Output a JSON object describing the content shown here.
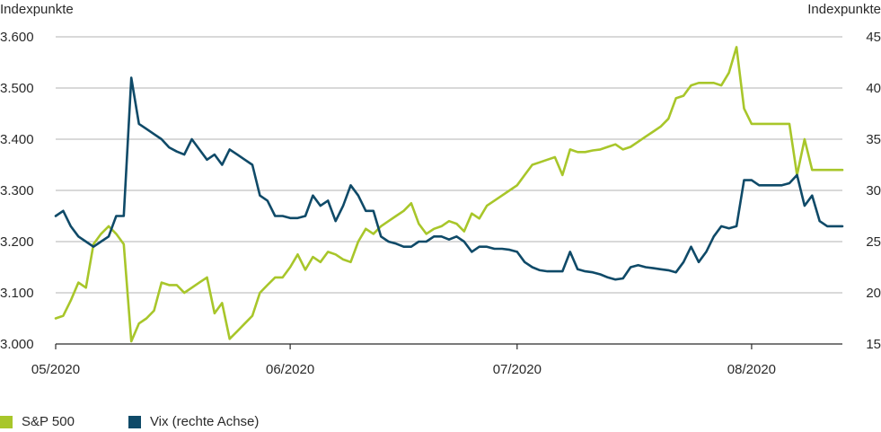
{
  "chart_data": {
    "type": "line",
    "y_left_label": "Indexpunkte",
    "y_right_label": "Indexpunkte",
    "y_left_ticks": [
      "3.000",
      "3.100",
      "3.200",
      "3.300",
      "3.400",
      "3.500",
      "3.600"
    ],
    "y_right_ticks": [
      "15",
      "20",
      "25",
      "30",
      "35",
      "40",
      "45"
    ],
    "ylim_left": [
      3000,
      3600
    ],
    "ylim_right": [
      15,
      45
    ],
    "x_ticks": [
      "05/2020",
      "06/2020",
      "07/2020",
      "08/2020"
    ],
    "x_tick_days": [
      0,
      31,
      61,
      92
    ],
    "xlim_days": [
      0,
      104
    ],
    "grid": "horizontal",
    "legend_position": "bottom-left",
    "series": [
      {
        "name": "S&P 500",
        "axis": "left",
        "color": "#a8c62a",
        "x_days": [
          0,
          1,
          2,
          3,
          4,
          5,
          6,
          7,
          8,
          9,
          10,
          11,
          12,
          13,
          14,
          15,
          16,
          17,
          18,
          19,
          20,
          21,
          22,
          23,
          24,
          25,
          26,
          27,
          28,
          29,
          30,
          31,
          32,
          33,
          34,
          35,
          36,
          37,
          38,
          39,
          40,
          41,
          42,
          43,
          44,
          45,
          46,
          47,
          48,
          49,
          50,
          51,
          52,
          53,
          54,
          55,
          56,
          57,
          58,
          59,
          60,
          61,
          62,
          63,
          64,
          65,
          66,
          67,
          68,
          69,
          70,
          71,
          72,
          73,
          74,
          75,
          76,
          77,
          78,
          79,
          80,
          81,
          82,
          83,
          84,
          85,
          86,
          87,
          88,
          89,
          90,
          91,
          92,
          93,
          94,
          95,
          96,
          97,
          98,
          99,
          100,
          101,
          102,
          103,
          104
        ],
        "values": [
          3050,
          3055,
          3085,
          3120,
          3110,
          3195,
          3215,
          3230,
          3215,
          3195,
          3005,
          3040,
          3050,
          3065,
          3120,
          3115,
          3115,
          3100,
          3110,
          3120,
          3130,
          3060,
          3080,
          3010,
          3025,
          3040,
          3055,
          3100,
          3115,
          3130,
          3130,
          3150,
          3175,
          3145,
          3170,
          3160,
          3180,
          3175,
          3165,
          3160,
          3200,
          3225,
          3215,
          3230,
          3240,
          3250,
          3260,
          3275,
          3235,
          3215,
          3225,
          3230,
          3240,
          3235,
          3220,
          3255,
          3245,
          3270,
          3280,
          3290,
          3300,
          3310,
          3330,
          3350,
          3355,
          3360,
          3365,
          3330,
          3380,
          3375,
          3375,
          3378,
          3380,
          3385,
          3390,
          3380,
          3385,
          3395,
          3405,
          3415,
          3425,
          3440,
          3480,
          3485,
          3505,
          3510,
          3510,
          3510,
          3505,
          3530,
          3580,
          3460,
          3430,
          3430,
          3430,
          3430,
          3430,
          3430,
          3330,
          3400,
          3340,
          3340,
          3340,
          3340,
          3340
        ],
        "note_points_plotted": "x_days/values sampled daily"
      },
      {
        "name": "Vix (rechte Achse)",
        "axis": "right",
        "color": "#0f4a68",
        "x_days": [
          0,
          1,
          2,
          3,
          4,
          5,
          6,
          7,
          8,
          9,
          10,
          11,
          12,
          13,
          14,
          15,
          16,
          17,
          18,
          19,
          20,
          21,
          22,
          23,
          24,
          25,
          26,
          27,
          28,
          29,
          30,
          31,
          32,
          33,
          34,
          35,
          36,
          37,
          38,
          39,
          40,
          41,
          42,
          43,
          44,
          45,
          46,
          47,
          48,
          49,
          50,
          51,
          52,
          53,
          54,
          55,
          56,
          57,
          58,
          59,
          60,
          61,
          62,
          63,
          64,
          65,
          66,
          67,
          68,
          69,
          70,
          71,
          72,
          73,
          74,
          75,
          76,
          77,
          78,
          79,
          80,
          81,
          82,
          83,
          84,
          85,
          86,
          87,
          88,
          89,
          90,
          91,
          92,
          93,
          94,
          95,
          96,
          97,
          98,
          99,
          100,
          101,
          102,
          103,
          104
        ],
        "values": [
          27.5,
          28.0,
          26.5,
          25.5,
          25.0,
          24.5,
          25.0,
          25.5,
          27.5,
          27.5,
          41.0,
          36.5,
          36.0,
          35.5,
          35.0,
          34.2,
          33.8,
          33.5,
          35.0,
          34.0,
          33.0,
          33.5,
          32.5,
          34.0,
          33.5,
          33.0,
          32.5,
          29.5,
          29.0,
          27.5,
          27.5,
          27.3,
          27.3,
          27.5,
          29.5,
          28.5,
          29.0,
          27.0,
          28.5,
          30.5,
          29.5,
          28.0,
          28.0,
          25.5,
          25.0,
          24.8,
          24.5,
          24.5,
          25.0,
          25.0,
          25.5,
          25.5,
          25.2,
          25.5,
          25.0,
          24.0,
          24.5,
          24.5,
          24.3,
          24.3,
          24.2,
          24.0,
          23.0,
          22.5,
          22.2,
          22.1,
          22.1,
          22.1,
          24.0,
          22.3,
          22.1,
          22.0,
          21.8,
          21.5,
          21.3,
          21.4,
          22.5,
          22.7,
          22.5,
          22.4,
          22.3,
          22.2,
          22.0,
          23.0,
          24.5,
          23.0,
          24.0,
          25.5,
          26.5,
          26.3,
          26.5,
          31.0,
          31.0,
          30.5,
          30.5,
          30.5,
          30.5,
          30.7,
          31.5,
          28.5,
          29.5,
          27.0,
          26.5,
          26.5,
          26.5
        ],
        "note_points_plotted": "x_days/values sampled daily"
      }
    ]
  },
  "legend": {
    "sp500_label": "S&P 500",
    "vix_label": "Vix (rechte Achse)"
  },
  "colors": {
    "sp500": "#a8c62a",
    "vix": "#0f4a68",
    "grid": "#9a9a9a",
    "axis": "#2a2a2a"
  }
}
